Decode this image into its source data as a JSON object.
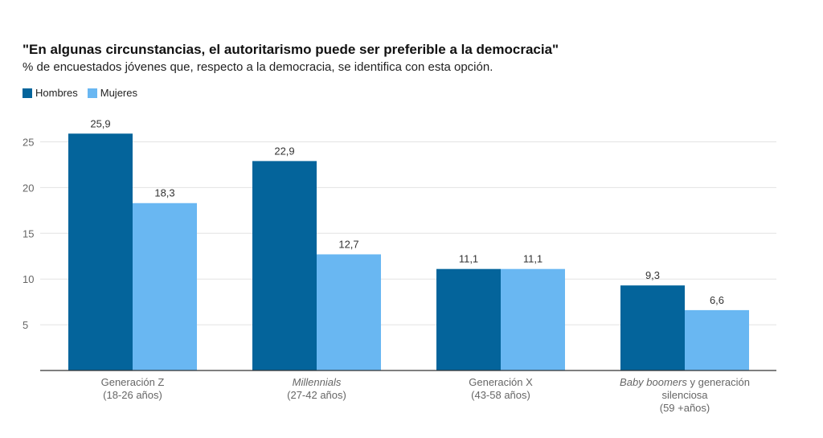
{
  "chart_data": {
    "type": "bar",
    "title": "\"En algunas circunstancias, el autoritarismo puede ser preferible a la democracia\"",
    "subtitle": "% de encuestados jóvenes que, respecto a la democracia, se identifica con esta opción.",
    "categories": [
      {
        "lines": [
          [
            {
              "t": "Generación Z",
              "i": false
            }
          ],
          [
            {
              "t": "(18-26 años)",
              "i": false
            }
          ]
        ]
      },
      {
        "lines": [
          [
            {
              "t": "Millennials",
              "i": true
            }
          ],
          [
            {
              "t": "(27-42 años)",
              "i": false
            }
          ]
        ]
      },
      {
        "lines": [
          [
            {
              "t": "Generación X",
              "i": false
            }
          ],
          [
            {
              "t": "(43-58 años)",
              "i": false
            }
          ]
        ]
      },
      {
        "lines": [
          [
            {
              "t": "Baby boomers",
              "i": true
            },
            {
              "t": " y generación",
              "i": false
            }
          ],
          [
            {
              "t": "silenciosa",
              "i": false
            }
          ],
          [
            {
              "t": "(59 +años)",
              "i": false
            }
          ]
        ]
      }
    ],
    "series": [
      {
        "name": "Hombres",
        "color": "#04649b",
        "values": [
          25.9,
          22.9,
          11.1,
          9.3
        ],
        "labels": [
          "25,9",
          "22,9",
          "11,1",
          "9,3"
        ]
      },
      {
        "name": "Mujeres",
        "color": "#69b7f2",
        "values": [
          18.3,
          12.7,
          11.1,
          6.6
        ],
        "labels": [
          "18,3",
          "12,7",
          "11,1",
          "6,6"
        ]
      }
    ],
    "yticks": [
      5,
      10,
      15,
      20,
      25
    ],
    "ylim": [
      0,
      29
    ],
    "grid": true,
    "legend": "top-left"
  }
}
